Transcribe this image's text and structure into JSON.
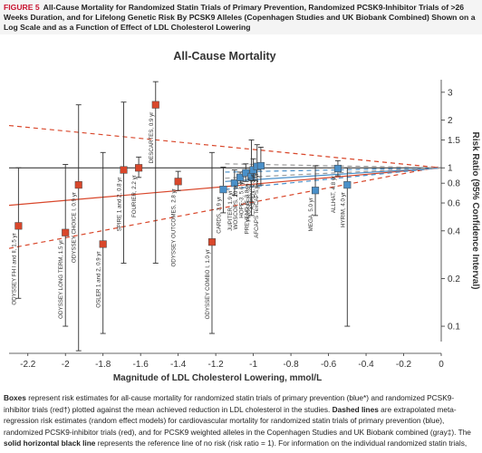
{
  "header": {
    "label": "FIGURE 5",
    "title": "All-Cause Mortality for Randomized Statin Trials of Primary Prevention, Randomized PCSK9-Inhibitor Trials of >26 Weeks Duration, and for Lifelong Genetic Risk By PCSK9 Alleles (Copenhagen Studies and UK Biobank Combined) Shown on a Log Scale and as a Function of Effect of LDL Cholesterol Lowering"
  },
  "caption": {
    "boxes": "Boxes",
    "p1": " represent risk estimates for all-cause mortality for randomized statin trials of primary prevention (blue*) and randomized PCSK9-inhibitor trials (red†) plotted against the mean achieved reduction in LDL cholesterol in the studies. ",
    "dashed": "Dashed lines",
    "p2": " are extrapolated meta-regression risk estimates (random effect models) for cardiovascular mortality for randomized statin trials of primary prevention (blue), randomized PCSK9-inhibitor trials (red), and for PCSK9 weighted alleles in the Copenhagen Studies and UK Biobank combined (gray‡). The ",
    "solid": "solid horizontal black line",
    "p3": " represents the reference line of no risk (risk ratio = 1). For information on the individual randomized statin trials,"
  },
  "chart_data": {
    "type": "scatter",
    "title": "All-Cause Mortality",
    "xlabel": "Magnitude of LDL Cholesterol Lowering, mmol/L",
    "ylabel": "Risk Ratio (95% Confidence Interval)",
    "y_scale": "log",
    "xlim": [
      -2.3,
      0
    ],
    "ylim": [
      0.08,
      3.6
    ],
    "x_ticks": [
      "-2.2",
      "-2",
      "-1.8",
      "-1.6",
      "-1.4",
      "-1.2",
      "-1",
      "-0.8",
      "-0.6",
      "-0.4",
      "-0.2",
      "0"
    ],
    "y_ticks": [
      "3",
      "2",
      "1.5",
      "1",
      "0.8",
      "0.6",
      "0.4",
      "0.2",
      "0.1"
    ],
    "reference_line": 1,
    "colors": {
      "statin": "#4a90c9",
      "pcsk9": "#d9472b",
      "genetic": "#9a9a9a",
      "reference": "#222222"
    },
    "series": [
      {
        "group": "pcsk9",
        "points": [
          {
            "label": "ODYSSEY FH I and II, 1.5 yr",
            "x": -2.25,
            "y": 0.43,
            "lo": 0.15,
            "hi": 1.0
          },
          {
            "label": "ODYSSEY LONG TERM, 1.5 yr",
            "x": -2.0,
            "y": 0.39,
            "lo": 0.1,
            "hi": 1.05
          },
          {
            "label": "ODYSSEY CHOICE I, 0.9 yr",
            "x": -1.93,
            "y": 0.78,
            "lo": 0.07,
            "hi": 2.5
          },
          {
            "label": "OSLER 1 and 2, 0.9 yr",
            "x": -1.8,
            "y": 0.33,
            "lo": 0.09,
            "hi": 1.25
          },
          {
            "label": "SPIRE 1 and 2, 0.8 yr",
            "x": -1.69,
            "y": 0.97,
            "lo": 0.25,
            "hi": 2.6
          },
          {
            "label": "FOURIER, 2.2 yr",
            "x": -1.61,
            "y": 1.0,
            "lo": 0.87,
            "hi": 1.17
          },
          {
            "label": "DESCARTES, 0.9 yr",
            "x": -1.52,
            "y": 2.5,
            "lo": 0.25,
            "hi": 3.5
          },
          {
            "label": "ODYSSEY OUTCOMES, 2.8 yr",
            "x": -1.4,
            "y": 0.82,
            "lo": 0.72,
            "hi": 0.95
          },
          {
            "label": "ODYSSEY COMBO I, 1.0 yr",
            "x": -1.22,
            "y": 0.34,
            "lo": 0.09,
            "hi": 1.25
          }
        ]
      },
      {
        "group": "statin",
        "points": [
          {
            "label": "CARDS, 3.9 yr",
            "x": -1.16,
            "y": 0.73,
            "lo": 0.52,
            "hi": 1.01
          },
          {
            "label": "JUPITER, 1.9 yr",
            "x": -1.1,
            "y": 0.8,
            "lo": 0.67,
            "hi": 0.97
          },
          {
            "label": "WOSCOPS, 20 yr",
            "x": -1.07,
            "y": 0.87,
            "lo": 0.8,
            "hi": 0.94
          },
          {
            "label": "HOPE-3, 5.6 yr",
            "x": -1.04,
            "y": 0.93,
            "lo": 0.82,
            "hi": 1.06
          },
          {
            "label": "PREVEND IT, 3.8 yr",
            "x": -1.01,
            "y": 0.88,
            "lo": 0.5,
            "hi": 1.5
          },
          {
            "label": "PROSPER, 3.2 yr",
            "x": -1.0,
            "y": 0.97,
            "lo": 0.83,
            "hi": 1.14
          },
          {
            "label": "ASPEN, 4.3 yr",
            "x": -0.98,
            "y": 1.02,
            "lo": 0.75,
            "hi": 1.4
          },
          {
            "label": "AFCAPS TexCAPS, 5.2 yr",
            "x": -0.96,
            "y": 1.03,
            "lo": 0.78,
            "hi": 1.35
          },
          {
            "label": "MEGA, 5.0 yr",
            "x": -0.67,
            "y": 0.72,
            "lo": 0.5,
            "hi": 1.03
          },
          {
            "label": "ALLHAT, 4.8 yr",
            "x": -0.55,
            "y": 0.99,
            "lo": 0.89,
            "hi": 1.11
          },
          {
            "label": "HYRIM, 4.0 yr",
            "x": -0.5,
            "y": 0.78,
            "lo": 0.1,
            "hi": 1.0
          }
        ]
      }
    ],
    "regression_lines": [
      {
        "group": "pcsk9",
        "style": "solid",
        "x": [
          -2.3,
          0
        ],
        "y": [
          0.58,
          1.0
        ]
      },
      {
        "group": "pcsk9",
        "style": "dashed",
        "x": [
          -2.3,
          0
        ],
        "y": [
          0.31,
          1.02
        ]
      },
      {
        "group": "pcsk9",
        "style": "dashed",
        "x": [
          -2.3,
          0
        ],
        "y": [
          1.85,
          1.0
        ]
      },
      {
        "group": "statin",
        "style": "solid",
        "x": [
          -1.15,
          0
        ],
        "y": [
          0.82,
          1.0
        ]
      },
      {
        "group": "statin",
        "style": "dashed",
        "x": [
          -1.15,
          0
        ],
        "y": [
          0.73,
          1.0
        ]
      },
      {
        "group": "statin",
        "style": "dashed",
        "x": [
          -1.15,
          0
        ],
        "y": [
          0.94,
          1.0
        ]
      },
      {
        "group": "genetic",
        "style": "dashed",
        "x": [
          -1.15,
          0
        ],
        "y": [
          0.86,
          1.0
        ]
      },
      {
        "group": "genetic",
        "style": "dashed",
        "x": [
          -1.15,
          0
        ],
        "y": [
          1.06,
          1.0
        ]
      }
    ]
  }
}
